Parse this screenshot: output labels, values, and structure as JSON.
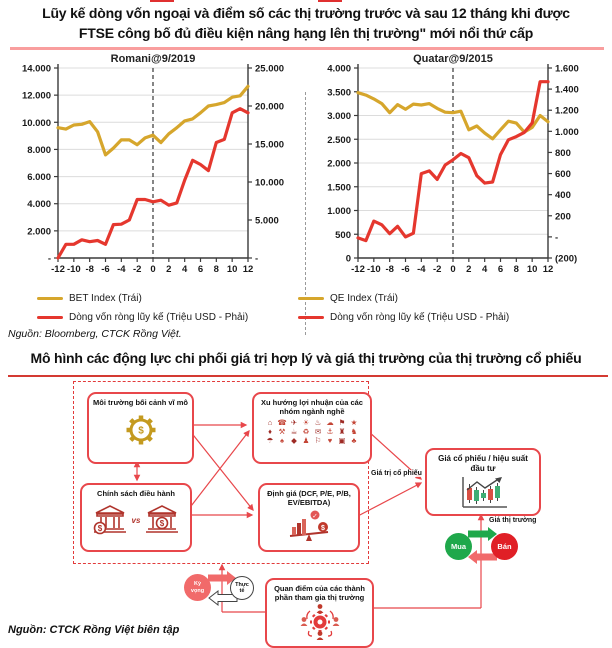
{
  "page": {
    "title_line1": "Lũy kế dòng vốn ngoại và điểm số các thị trường trước và sau 12 tháng khi được",
    "title_line2": "FTSE công bố đủ điều kiện nâng hạng lên thị trường\" mới nổi thứ cấp",
    "source1": "Nguồn: Bloomberg, CTCK Rồng Việt.",
    "section2_title": "Mô hình các động lực chi phối giá trị hợp lý và giá thị trường của thị trường cổ phiếu",
    "source2": "Nguồn: CTCK Rồng Việt biên tập"
  },
  "chart_data": [
    {
      "type": "line",
      "title": "Romani@9/2019",
      "x_ticks": [
        "-12",
        "-10",
        "-8",
        "-6",
        "-4",
        "-2",
        "0",
        "2",
        "4",
        "6",
        "8",
        "10",
        "12"
      ],
      "x_range": [
        -12,
        12
      ],
      "event_x": 0,
      "grid": true,
      "left_axis": {
        "min": 0,
        "max": 14000,
        "tick_labels": [
          "14.000",
          "12.000",
          "10.000",
          "8.000",
          "6.000",
          "4.000",
          "2.000",
          "-"
        ]
      },
      "right_axis": {
        "min": 0,
        "max": 25000,
        "tick_labels": [
          "25.000",
          "20.000",
          "15.000",
          "10.000",
          "5.000",
          "-"
        ]
      },
      "series": [
        {
          "name": "BET Index (Trái)",
          "axis": "left",
          "color": "#d6a62c",
          "values": [
            9600,
            9500,
            9800,
            9850,
            10050,
            9300,
            7600,
            8100,
            8700,
            8700,
            8350,
            8850,
            9050,
            8500,
            9150,
            9600,
            10100,
            10250,
            10700,
            11200,
            11300,
            11450,
            11850,
            11950,
            12650
          ]
        },
        {
          "name": "Dòng vốn ròng lũy kế (Triệu USD - Phải)",
          "axis": "right",
          "color": "#e5372e",
          "values": [
            0,
            1800,
            1800,
            2400,
            2150,
            2300,
            1800,
            4400,
            4450,
            5000,
            7700,
            7700,
            7400,
            7600,
            6950,
            7250,
            10250,
            12850,
            12300,
            11500,
            15200,
            15600,
            19100,
            19650,
            19100
          ]
        }
      ]
    },
    {
      "type": "line",
      "title": "Quatar@9/2015",
      "x_ticks": [
        "-12",
        "-10",
        "-8",
        "-6",
        "-4",
        "-2",
        "0",
        "2",
        "4",
        "6",
        "8",
        "10",
        "12"
      ],
      "x_range": [
        -12,
        12
      ],
      "event_x": 0,
      "grid": true,
      "left_axis": {
        "min": 0,
        "max": 4000,
        "tick_labels": [
          "4.000",
          "3.500",
          "3.000",
          "2.500",
          "2.000",
          "1.500",
          "1.000",
          "500",
          "0"
        ]
      },
      "right_axis": {
        "min": -200,
        "max": 1600,
        "tick_labels": [
          "1.600",
          "1.400",
          "1.200",
          "1.000",
          "800",
          "600",
          "400",
          "200",
          "-",
          "(200)"
        ]
      },
      "series": [
        {
          "name": "QE Index (Trái)",
          "axis": "left",
          "color": "#d6a62c",
          "values": [
            3480,
            3430,
            3350,
            3250,
            3060,
            3230,
            3130,
            3240,
            3220,
            3250,
            3150,
            3070,
            3060,
            3090,
            2700,
            2780,
            2630,
            2510,
            2700,
            2880,
            2840,
            2650,
            2750,
            3000,
            2870
          ]
        },
        {
          "name": "Dòng vốn ròng lũy kế (Triệu USD - Phải)",
          "axis": "right",
          "color": "#e5372e",
          "values": [
            -10,
            -35,
            150,
            115,
            30,
            100,
            0,
            35,
            600,
            625,
            545,
            680,
            730,
            790,
            750,
            580,
            510,
            520,
            780,
            920,
            950,
            990,
            1080,
            1470,
            1470
          ]
        }
      ]
    }
  ],
  "diagram": {
    "box_macro": "Môi trường bối cảnh vĩ mô",
    "box_sector": "Xu hướng lợi nhuận của các nhóm ngành nghề",
    "box_policy": "Chính sách điều hành",
    "box_policy_vs": "vs",
    "box_valuation": "Định giá (DCF, P/E, P/B, EV/EBITDA)",
    "box_price": "Giá cổ phiếu / hiệu suất đầu tư",
    "box_participants": "Quan điểm của các thành phần tham gia thị trường",
    "label_value": "Giá trị cổ phiếu",
    "label_market": "Giá thị trường",
    "buy": "Mua",
    "sell": "Bán",
    "expectation": "Kỳ vọng",
    "reality": "Thực tế",
    "sector_icons": "⌂☎✈☀♨☁⚑★♦⚒☕♻✉⚓♜♞☂♠◆♟⚐♥▣♣",
    "colors": {
      "buy": "#1fa84b",
      "sell": "#e01f26",
      "expectation": "#f16a6a",
      "accent": "#e8474b",
      "gold": "#c49a1f"
    }
  }
}
